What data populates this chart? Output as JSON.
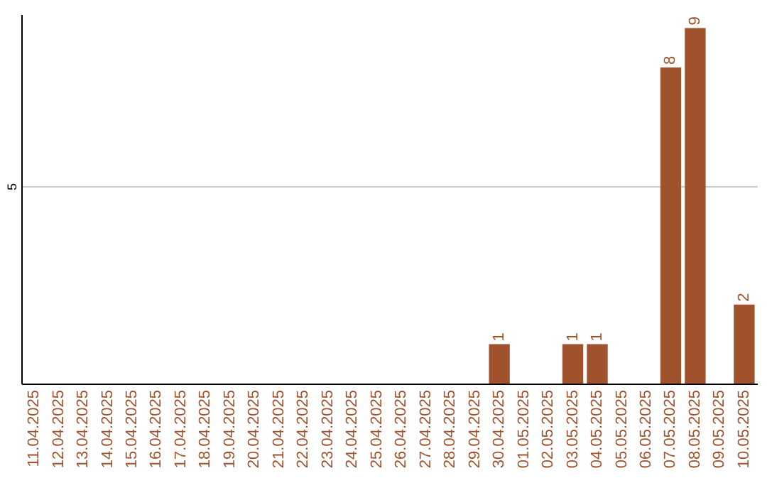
{
  "chart_data": {
    "type": "bar",
    "categories": [
      "11.04.2025",
      "12.04.2025",
      "13.04.2025",
      "14.04.2025",
      "15.04.2025",
      "16.04.2025",
      "17.04.2025",
      "18.04.2025",
      "19.04.2025",
      "20.04.2025",
      "21.04.2025",
      "22.04.2025",
      "23.04.2025",
      "24.04.2025",
      "25.04.2025",
      "26.04.2025",
      "27.04.2025",
      "28.04.2025",
      "29.04.2025",
      "30.04.2025",
      "01.05.2025",
      "02.05.2025",
      "03.05.2025",
      "04.05.2025",
      "05.05.2025",
      "06.05.2025",
      "07.05.2025",
      "08.05.2025",
      "09.05.2025",
      "10.05.2025"
    ],
    "values": [
      null,
      null,
      null,
      null,
      null,
      null,
      null,
      null,
      null,
      null,
      null,
      null,
      null,
      null,
      null,
      null,
      null,
      null,
      null,
      1,
      null,
      null,
      1,
      1,
      null,
      null,
      8,
      9,
      null,
      2
    ],
    "value_labels": [
      null,
      null,
      null,
      null,
      null,
      null,
      null,
      null,
      null,
      null,
      null,
      null,
      null,
      null,
      null,
      null,
      null,
      null,
      null,
      "1",
      null,
      null,
      "1",
      "1",
      null,
      null,
      "8",
      "9",
      null,
      "2"
    ],
    "color": "#a0522d",
    "ylim": [
      0,
      9.35
    ],
    "yticks": [
      5
    ],
    "grid": "y"
  }
}
